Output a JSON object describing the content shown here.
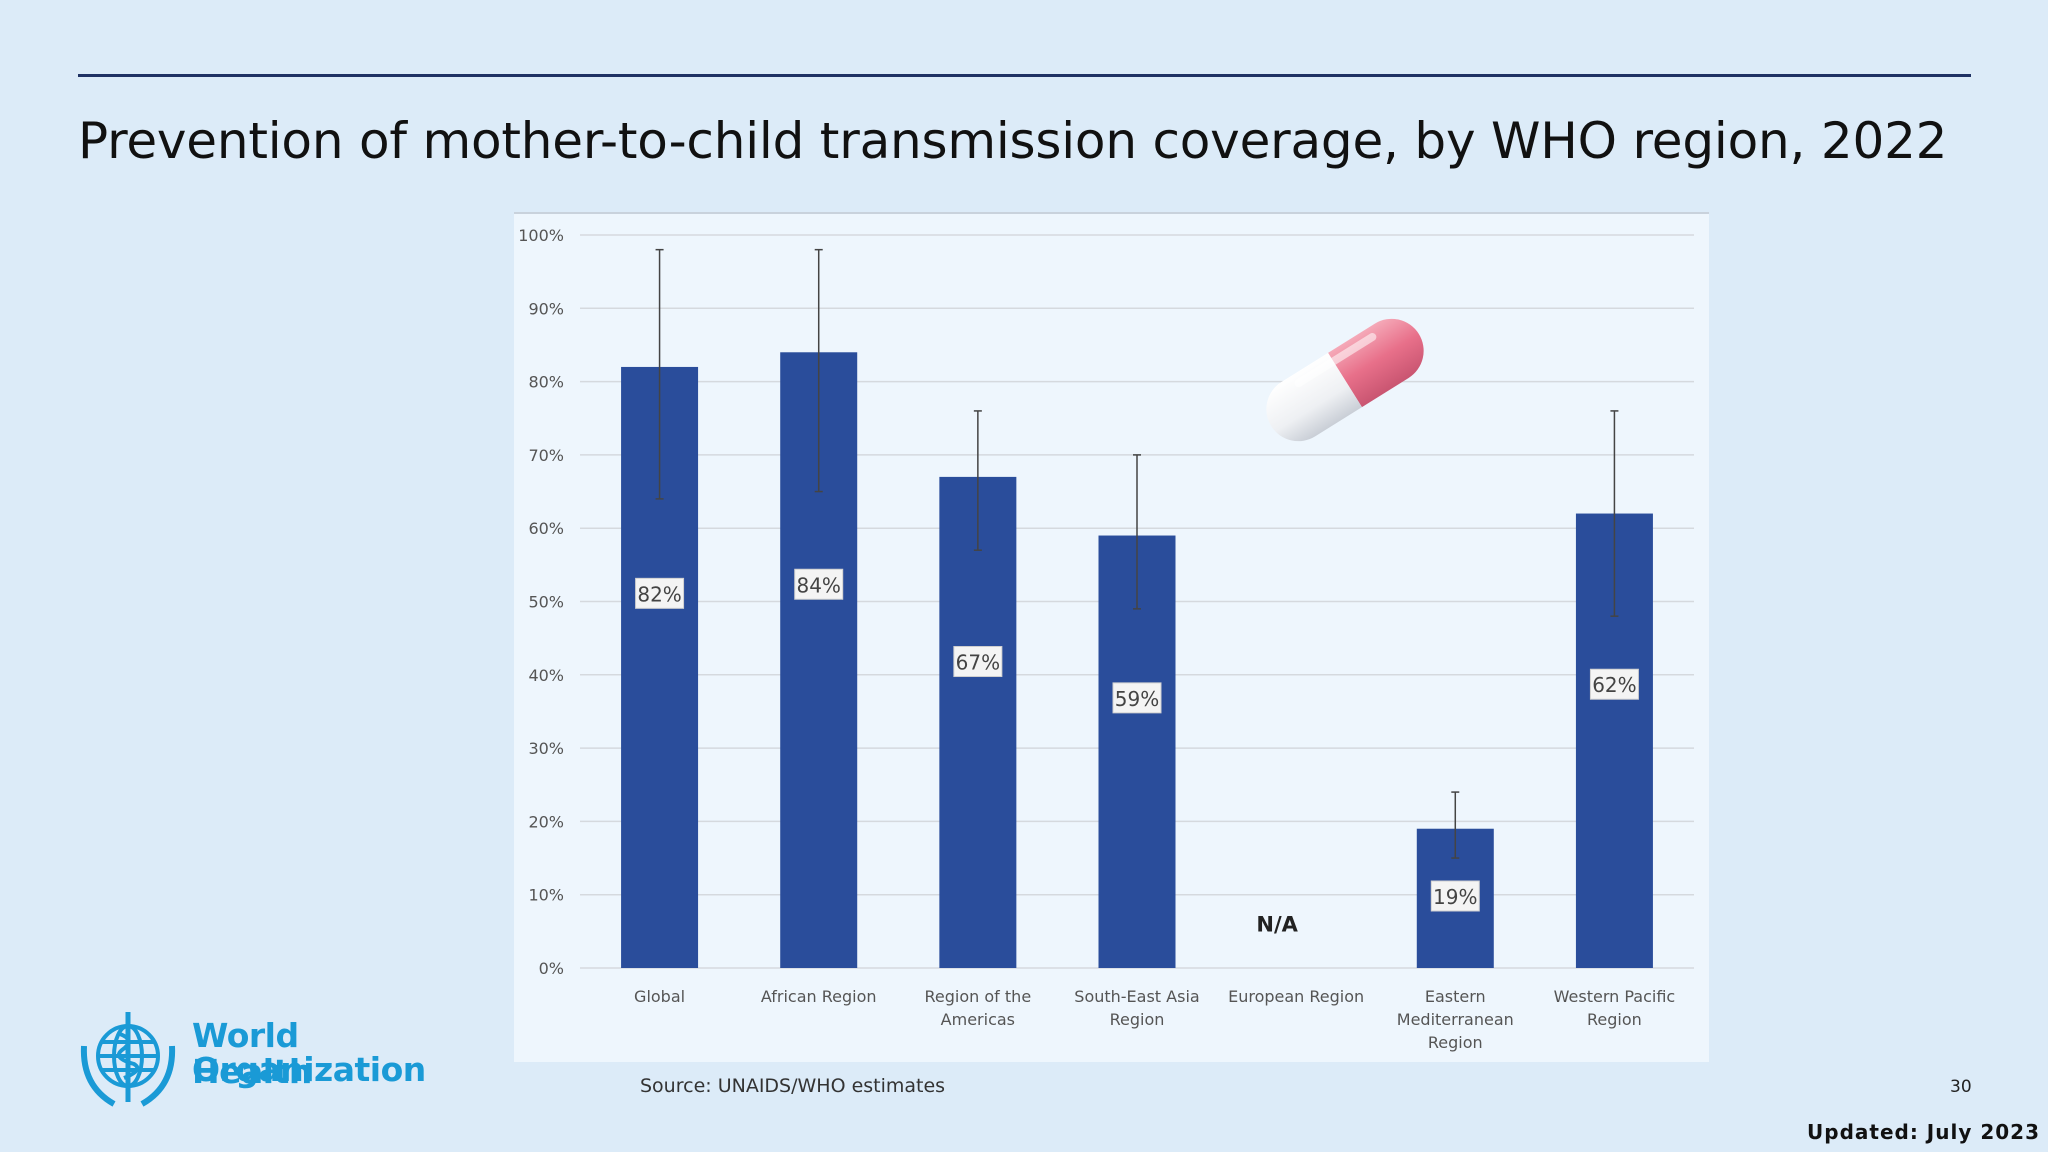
{
  "slide": {
    "title": "Prevention of mother-to-child transmission coverage, by WHO region, 2022",
    "source": "Source: UNAIDS/WHO estimates",
    "page_number": "30",
    "updated": "Updated: July 2023",
    "logo_line1": "World Health",
    "logo_line2": "Organization"
  },
  "colors": {
    "background": "#dcebf8",
    "bar": "#2a4d9b",
    "rule": "#1f3264",
    "logo": "#1a9ad6"
  },
  "icons": [
    "pill-icon",
    "who-emblem-icon"
  ],
  "chart_data": {
    "type": "bar",
    "categories": [
      [
        "Global"
      ],
      [
        "African Region"
      ],
      [
        "Region of the",
        "Americas"
      ],
      [
        "South-East Asia",
        "Region"
      ],
      [
        "European Region"
      ],
      [
        "Eastern",
        "Mediterranean",
        "Region"
      ],
      [
        "Western Pacific",
        "Region"
      ]
    ],
    "values": [
      82,
      84,
      67,
      59,
      null,
      19,
      62
    ],
    "data_labels": [
      "82%",
      "84%",
      "67%",
      "59%",
      "N/A",
      "19%",
      "62%"
    ],
    "error_low": [
      64,
      65,
      57,
      49,
      null,
      15,
      48
    ],
    "error_high": [
      98,
      98,
      76,
      70,
      null,
      24,
      76
    ],
    "ylim": [
      0,
      100
    ],
    "yticks": [
      0,
      10,
      20,
      30,
      40,
      50,
      60,
      70,
      80,
      90,
      100
    ],
    "ytick_labels": [
      "0%",
      "10%",
      "20%",
      "30%",
      "40%",
      "50%",
      "60%",
      "70%",
      "80%",
      "90%",
      "100%"
    ],
    "grid": true,
    "legend": "none",
    "xlabel": "",
    "ylabel": ""
  }
}
